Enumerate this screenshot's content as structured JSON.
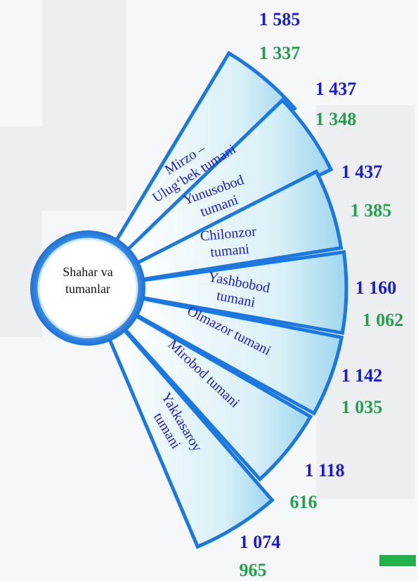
{
  "center": "Shahar va tumanlar",
  "items": [
    {
      "name": "Mirzo – Ulug‘bek tumani",
      "values": [
        "1 585",
        "1 337"
      ]
    },
    {
      "name": "Yunusobod tumani",
      "values": [
        "1 437",
        "1 348"
      ]
    },
    {
      "name": "Chilonzor tumani",
      "values": [
        "1 437",
        "1 385"
      ]
    },
    {
      "name": "Yashbobod tumani",
      "values": [
        "1 160",
        "1 062"
      ]
    },
    {
      "name": "Olmazor tumani",
      "values": [
        "1 142",
        "1 035"
      ]
    },
    {
      "name": "Mirobod tumani",
      "values": [
        "1 118",
        "616"
      ]
    },
    {
      "name": "Yakkasaroy tumani",
      "values": [
        "1 074",
        "965"
      ]
    }
  ]
}
